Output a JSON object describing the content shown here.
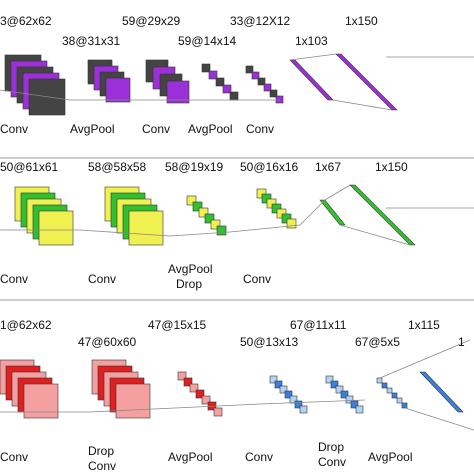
{
  "rows": [
    {
      "dims": [
        "3@62x62",
        "38@31x31",
        "59@29x29",
        "59@14x14",
        "33@12X12",
        "1x103",
        "1x150"
      ],
      "ops": [
        [
          "Conv"
        ],
        [
          "AvgPool"
        ],
        [
          "Conv"
        ],
        [
          "AvgPool"
        ],
        [
          "Conv"
        ]
      ]
    },
    {
      "dims": [
        "50@61x61",
        "58@58x58",
        "58@19x19",
        "50@16x16",
        "1x67",
        "1x150"
      ],
      "ops": [
        [
          "Conv"
        ],
        [
          "Conv"
        ],
        [
          "AvgPool",
          "Drop"
        ],
        [
          "Conv"
        ]
      ]
    },
    {
      "dims": [
        "1@62x62",
        "47@60x60",
        "47@15x15",
        "50@13x13",
        "67@11x11",
        "67@5x5",
        "1x115",
        "1"
      ],
      "ops": [
        [
          "Conv"
        ],
        [
          "Drop",
          "Conv"
        ],
        [
          "AvgPool"
        ],
        [
          "Conv"
        ],
        [
          "Drop",
          "Conv"
        ],
        [
          "AvgPool"
        ]
      ]
    }
  ]
}
